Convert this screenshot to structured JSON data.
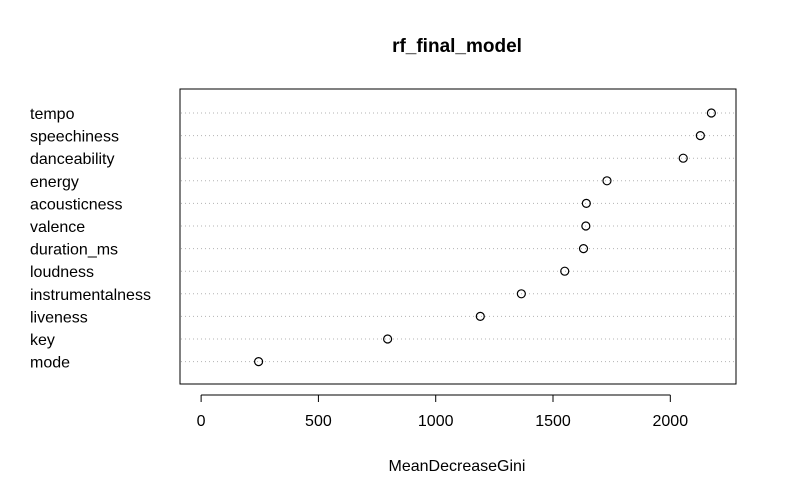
{
  "chart_data": {
    "type": "scatter",
    "title": "rf_final_model",
    "xlabel": "MeanDecreaseGini",
    "ylabel": "",
    "xlim": [
      -90,
      2280
    ],
    "xticks": [
      0,
      500,
      1000,
      1500,
      2000
    ],
    "grid": "horizontal dotted lines per variable",
    "legend": "none",
    "categories": [
      "tempo",
      "speechiness",
      "danceability",
      "energy",
      "acousticness",
      "valence",
      "duration_ms",
      "loudness",
      "instrumentalness",
      "liveness",
      "key",
      "mode"
    ],
    "values": [
      2175,
      2128,
      2055,
      1730,
      1642,
      1640,
      1630,
      1550,
      1365,
      1190,
      795,
      245
    ]
  }
}
